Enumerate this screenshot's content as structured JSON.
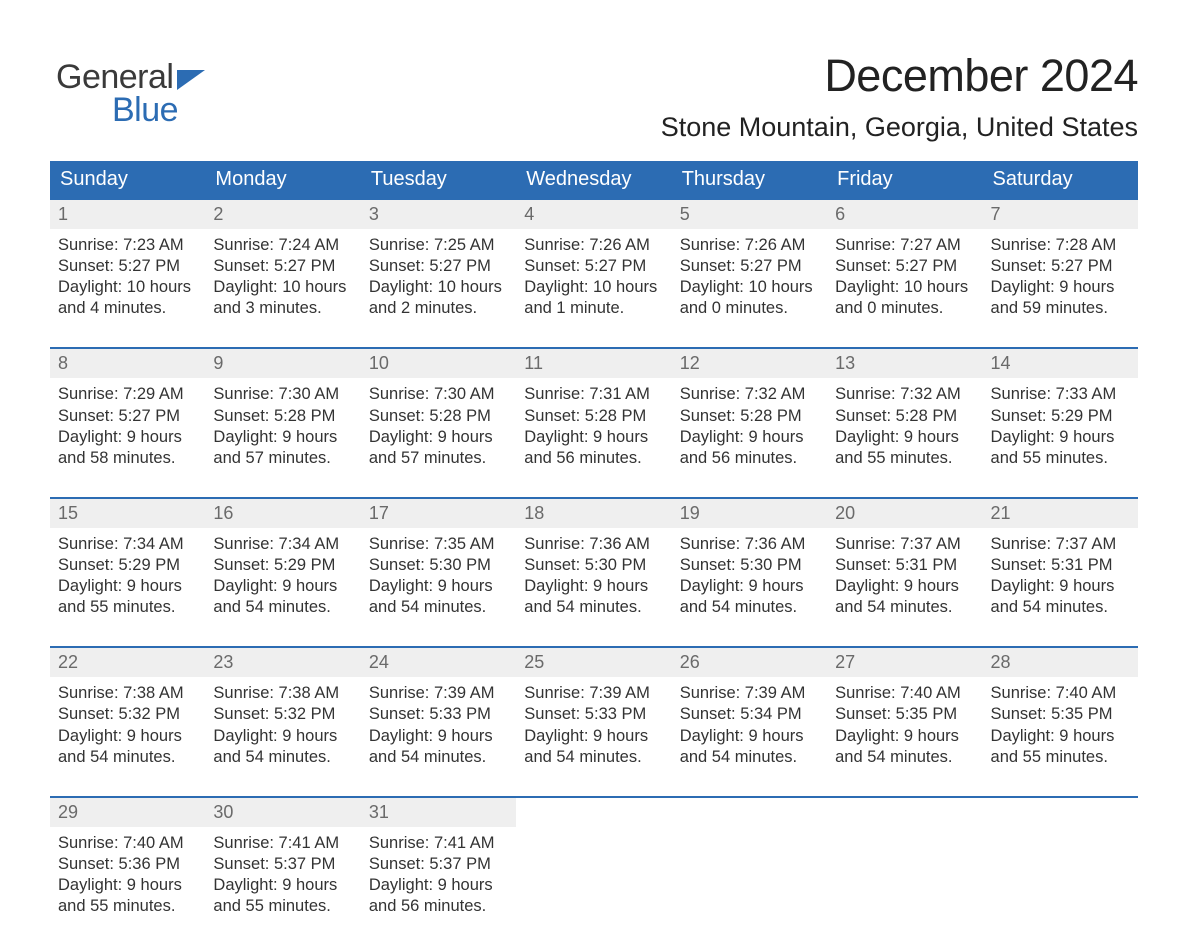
{
  "brand": {
    "word1": "General",
    "word2": "Blue",
    "word1_color": "#3a3a3a",
    "word2_color": "#2c6cb3",
    "flag_color": "#2c6cb3"
  },
  "title": "December 2024",
  "location": "Stone Mountain, Georgia, United States",
  "colors": {
    "header_bg": "#2c6cb3",
    "header_text": "#ffffff",
    "daynum_bg": "#efefef",
    "daynum_text": "#6a6a6a",
    "cell_text": "#333333",
    "week_divider": "#2c6cb3",
    "background": "#ffffff"
  },
  "typography": {
    "title_fontsize": 45,
    "location_fontsize": 27,
    "header_fontsize": 20,
    "cell_fontsize": 16.5
  },
  "day_headers": [
    "Sunday",
    "Monday",
    "Tuesday",
    "Wednesday",
    "Thursday",
    "Friday",
    "Saturday"
  ],
  "weeks": [
    [
      {
        "n": "1",
        "l1": "Sunrise: 7:23 AM",
        "l2": "Sunset: 5:27 PM",
        "l3": "Daylight: 10 hours",
        "l4": "and 4 minutes."
      },
      {
        "n": "2",
        "l1": "Sunrise: 7:24 AM",
        "l2": "Sunset: 5:27 PM",
        "l3": "Daylight: 10 hours",
        "l4": "and 3 minutes."
      },
      {
        "n": "3",
        "l1": "Sunrise: 7:25 AM",
        "l2": "Sunset: 5:27 PM",
        "l3": "Daylight: 10 hours",
        "l4": "and 2 minutes."
      },
      {
        "n": "4",
        "l1": "Sunrise: 7:26 AM",
        "l2": "Sunset: 5:27 PM",
        "l3": "Daylight: 10 hours",
        "l4": "and 1 minute."
      },
      {
        "n": "5",
        "l1": "Sunrise: 7:26 AM",
        "l2": "Sunset: 5:27 PM",
        "l3": "Daylight: 10 hours",
        "l4": "and 0 minutes."
      },
      {
        "n": "6",
        "l1": "Sunrise: 7:27 AM",
        "l2": "Sunset: 5:27 PM",
        "l3": "Daylight: 10 hours",
        "l4": "and 0 minutes."
      },
      {
        "n": "7",
        "l1": "Sunrise: 7:28 AM",
        "l2": "Sunset: 5:27 PM",
        "l3": "Daylight: 9 hours",
        "l4": "and 59 minutes."
      }
    ],
    [
      {
        "n": "8",
        "l1": "Sunrise: 7:29 AM",
        "l2": "Sunset: 5:27 PM",
        "l3": "Daylight: 9 hours",
        "l4": "and 58 minutes."
      },
      {
        "n": "9",
        "l1": "Sunrise: 7:30 AM",
        "l2": "Sunset: 5:28 PM",
        "l3": "Daylight: 9 hours",
        "l4": "and 57 minutes."
      },
      {
        "n": "10",
        "l1": "Sunrise: 7:30 AM",
        "l2": "Sunset: 5:28 PM",
        "l3": "Daylight: 9 hours",
        "l4": "and 57 minutes."
      },
      {
        "n": "11",
        "l1": "Sunrise: 7:31 AM",
        "l2": "Sunset: 5:28 PM",
        "l3": "Daylight: 9 hours",
        "l4": "and 56 minutes."
      },
      {
        "n": "12",
        "l1": "Sunrise: 7:32 AM",
        "l2": "Sunset: 5:28 PM",
        "l3": "Daylight: 9 hours",
        "l4": "and 56 minutes."
      },
      {
        "n": "13",
        "l1": "Sunrise: 7:32 AM",
        "l2": "Sunset: 5:28 PM",
        "l3": "Daylight: 9 hours",
        "l4": "and 55 minutes."
      },
      {
        "n": "14",
        "l1": "Sunrise: 7:33 AM",
        "l2": "Sunset: 5:29 PM",
        "l3": "Daylight: 9 hours",
        "l4": "and 55 minutes."
      }
    ],
    [
      {
        "n": "15",
        "l1": "Sunrise: 7:34 AM",
        "l2": "Sunset: 5:29 PM",
        "l3": "Daylight: 9 hours",
        "l4": "and 55 minutes."
      },
      {
        "n": "16",
        "l1": "Sunrise: 7:34 AM",
        "l2": "Sunset: 5:29 PM",
        "l3": "Daylight: 9 hours",
        "l4": "and 54 minutes."
      },
      {
        "n": "17",
        "l1": "Sunrise: 7:35 AM",
        "l2": "Sunset: 5:30 PM",
        "l3": "Daylight: 9 hours",
        "l4": "and 54 minutes."
      },
      {
        "n": "18",
        "l1": "Sunrise: 7:36 AM",
        "l2": "Sunset: 5:30 PM",
        "l3": "Daylight: 9 hours",
        "l4": "and 54 minutes."
      },
      {
        "n": "19",
        "l1": "Sunrise: 7:36 AM",
        "l2": "Sunset: 5:30 PM",
        "l3": "Daylight: 9 hours",
        "l4": "and 54 minutes."
      },
      {
        "n": "20",
        "l1": "Sunrise: 7:37 AM",
        "l2": "Sunset: 5:31 PM",
        "l3": "Daylight: 9 hours",
        "l4": "and 54 minutes."
      },
      {
        "n": "21",
        "l1": "Sunrise: 7:37 AM",
        "l2": "Sunset: 5:31 PM",
        "l3": "Daylight: 9 hours",
        "l4": "and 54 minutes."
      }
    ],
    [
      {
        "n": "22",
        "l1": "Sunrise: 7:38 AM",
        "l2": "Sunset: 5:32 PM",
        "l3": "Daylight: 9 hours",
        "l4": "and 54 minutes."
      },
      {
        "n": "23",
        "l1": "Sunrise: 7:38 AM",
        "l2": "Sunset: 5:32 PM",
        "l3": "Daylight: 9 hours",
        "l4": "and 54 minutes."
      },
      {
        "n": "24",
        "l1": "Sunrise: 7:39 AM",
        "l2": "Sunset: 5:33 PM",
        "l3": "Daylight: 9 hours",
        "l4": "and 54 minutes."
      },
      {
        "n": "25",
        "l1": "Sunrise: 7:39 AM",
        "l2": "Sunset: 5:33 PM",
        "l3": "Daylight: 9 hours",
        "l4": "and 54 minutes."
      },
      {
        "n": "26",
        "l1": "Sunrise: 7:39 AM",
        "l2": "Sunset: 5:34 PM",
        "l3": "Daylight: 9 hours",
        "l4": "and 54 minutes."
      },
      {
        "n": "27",
        "l1": "Sunrise: 7:40 AM",
        "l2": "Sunset: 5:35 PM",
        "l3": "Daylight: 9 hours",
        "l4": "and 54 minutes."
      },
      {
        "n": "28",
        "l1": "Sunrise: 7:40 AM",
        "l2": "Sunset: 5:35 PM",
        "l3": "Daylight: 9 hours",
        "l4": "and 55 minutes."
      }
    ],
    [
      {
        "n": "29",
        "l1": "Sunrise: 7:40 AM",
        "l2": "Sunset: 5:36 PM",
        "l3": "Daylight: 9 hours",
        "l4": "and 55 minutes."
      },
      {
        "n": "30",
        "l1": "Sunrise: 7:41 AM",
        "l2": "Sunset: 5:37 PM",
        "l3": "Daylight: 9 hours",
        "l4": "and 55 minutes."
      },
      {
        "n": "31",
        "l1": "Sunrise: 7:41 AM",
        "l2": "Sunset: 5:37 PM",
        "l3": "Daylight: 9 hours",
        "l4": "and 56 minutes."
      },
      null,
      null,
      null,
      null
    ]
  ]
}
